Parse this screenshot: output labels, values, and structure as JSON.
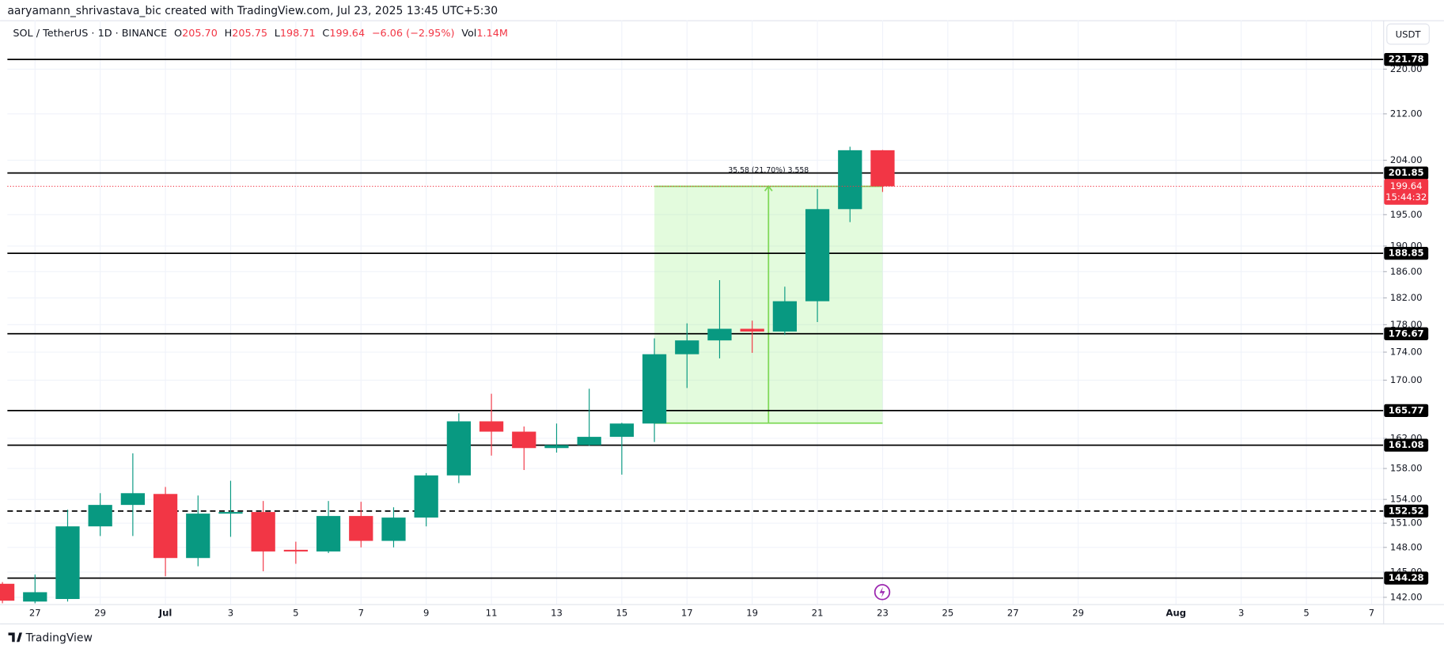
{
  "header": "aaryamann_shrivastava_bic created with TradingView.com, Jul 23, 2025 13:45 UTC+5:30",
  "chart_data": {
    "type": "candlestick",
    "title": "SOL / TetherUS · 1D · BINANCE",
    "legend": {
      "o_label": "O",
      "open": "205.70",
      "h_label": "H",
      "high": "205.75",
      "l_label": "L",
      "low": "198.71",
      "c_label": "C",
      "close": "199.64",
      "change": "−6.06 (−2.95%)",
      "vol_label": "Vol",
      "volume": "1.14M"
    },
    "currency": "USDT",
    "categories": [
      null,
      "27",
      null,
      "29",
      null,
      "Jul",
      null,
      "3",
      null,
      "5",
      null,
      "7",
      null,
      "9",
      null,
      "11",
      null,
      "13",
      null,
      "15",
      null,
      "17",
      null,
      "19",
      null,
      "21",
      null,
      "23",
      null,
      "25",
      null,
      "27",
      null,
      "29",
      null,
      null,
      "Aug",
      null,
      "3",
      null,
      "5",
      null,
      "7"
    ],
    "open": [
      143.6,
      141.5,
      141.8,
      150.6,
      153.3,
      154.7,
      146.7,
      152.2,
      152.4,
      147.7,
      147.5,
      151.9,
      148.8,
      151.7,
      157.1,
      164.3,
      162.9,
      160.7,
      161.1,
      162.2,
      164.0,
      173.7,
      175.7,
      177.4,
      177.0,
      181.5,
      195.9,
      205.7,
      null,
      null,
      null,
      null,
      null,
      null,
      null,
      null,
      null,
      null,
      null,
      null,
      null,
      null,
      null
    ],
    "high": [
      143.8,
      144.7,
      152.7,
      154.8,
      160.0,
      155.6,
      154.5,
      156.4,
      153.8,
      148.7,
      153.8,
      153.7,
      153.0,
      157.4,
      165.4,
      168.1,
      163.6,
      164.0,
      168.8,
      164.1,
      176.0,
      178.2,
      184.7,
      178.6,
      183.7,
      199.2,
      206.3,
      205.75,
      null,
      null,
      null,
      null,
      null,
      null,
      null,
      null,
      null,
      null,
      null,
      null,
      null,
      null,
      null
    ],
    "low": [
      141.3,
      141.3,
      141.5,
      149.4,
      149.4,
      144.5,
      145.7,
      149.3,
      145.1,
      146.0,
      147.3,
      148.0,
      148.0,
      150.6,
      156.1,
      159.7,
      157.8,
      160.1,
      161.0,
      157.2,
      161.5,
      168.9,
      173.1,
      173.9,
      176.5,
      178.4,
      193.8,
      198.71,
      null,
      null,
      null,
      null,
      null,
      null,
      null,
      null,
      null,
      null,
      null,
      null,
      null,
      null,
      null
    ],
    "close": [
      141.6,
      142.6,
      150.6,
      153.3,
      154.8,
      146.7,
      152.2,
      152.4,
      147.5,
      147.5,
      151.9,
      148.8,
      151.7,
      157.1,
      164.3,
      162.9,
      160.7,
      161.1,
      162.2,
      164.0,
      173.7,
      175.7,
      177.4,
      177.0,
      181.5,
      195.9,
      205.7,
      199.64,
      null,
      null,
      null,
      null,
      null,
      null,
      null,
      null,
      null,
      null,
      null,
      null,
      null,
      null,
      null
    ],
    "up_color": "#089981",
    "down_color": "#f23645",
    "log_scale": true,
    "grid": true,
    "ylim": [
      141.2,
      229.1
    ],
    "yticks": [
      {
        "value": 142,
        "label": "142.00"
      },
      {
        "value": 145,
        "label": "145.00"
      },
      {
        "value": 148,
        "label": "148.00"
      },
      {
        "value": 151,
        "label": "151.00"
      },
      {
        "value": 154,
        "label": "154.00"
      },
      {
        "value": 158,
        "label": "158.00"
      },
      {
        "value": 162,
        "label": "162.00"
      },
      {
        "value": 170,
        "label": "170.00"
      },
      {
        "value": 174,
        "label": "174.00"
      },
      {
        "value": 178,
        "label": "178.00"
      },
      {
        "value": 182,
        "label": "182.00"
      },
      {
        "value": 186,
        "label": "186.00"
      },
      {
        "value": 190,
        "label": "190.00"
      },
      {
        "value": 195,
        "label": "195.00"
      },
      {
        "value": 204,
        "label": "204.00"
      },
      {
        "value": 212,
        "label": "212.00"
      },
      {
        "value": 220,
        "label": "220.00"
      }
    ],
    "price_lines": [
      {
        "value": 221.78,
        "style": "solid"
      },
      {
        "value": 201.85,
        "style": "solid"
      },
      {
        "value": 188.85,
        "style": "solid"
      },
      {
        "value": 176.67,
        "style": "solid"
      },
      {
        "value": 165.77,
        "style": "solid"
      },
      {
        "value": 161.08,
        "style": "solid"
      },
      {
        "value": 152.52,
        "style": "dashed"
      },
      {
        "value": 144.28,
        "style": "solid"
      }
    ],
    "last_price": {
      "value": 199.64,
      "countdown": "15:44:32"
    },
    "measure": {
      "low": 164.06,
      "high": 199.64,
      "label": "35.58 (21.70%) 3,558"
    },
    "watermark": "TradingView"
  }
}
